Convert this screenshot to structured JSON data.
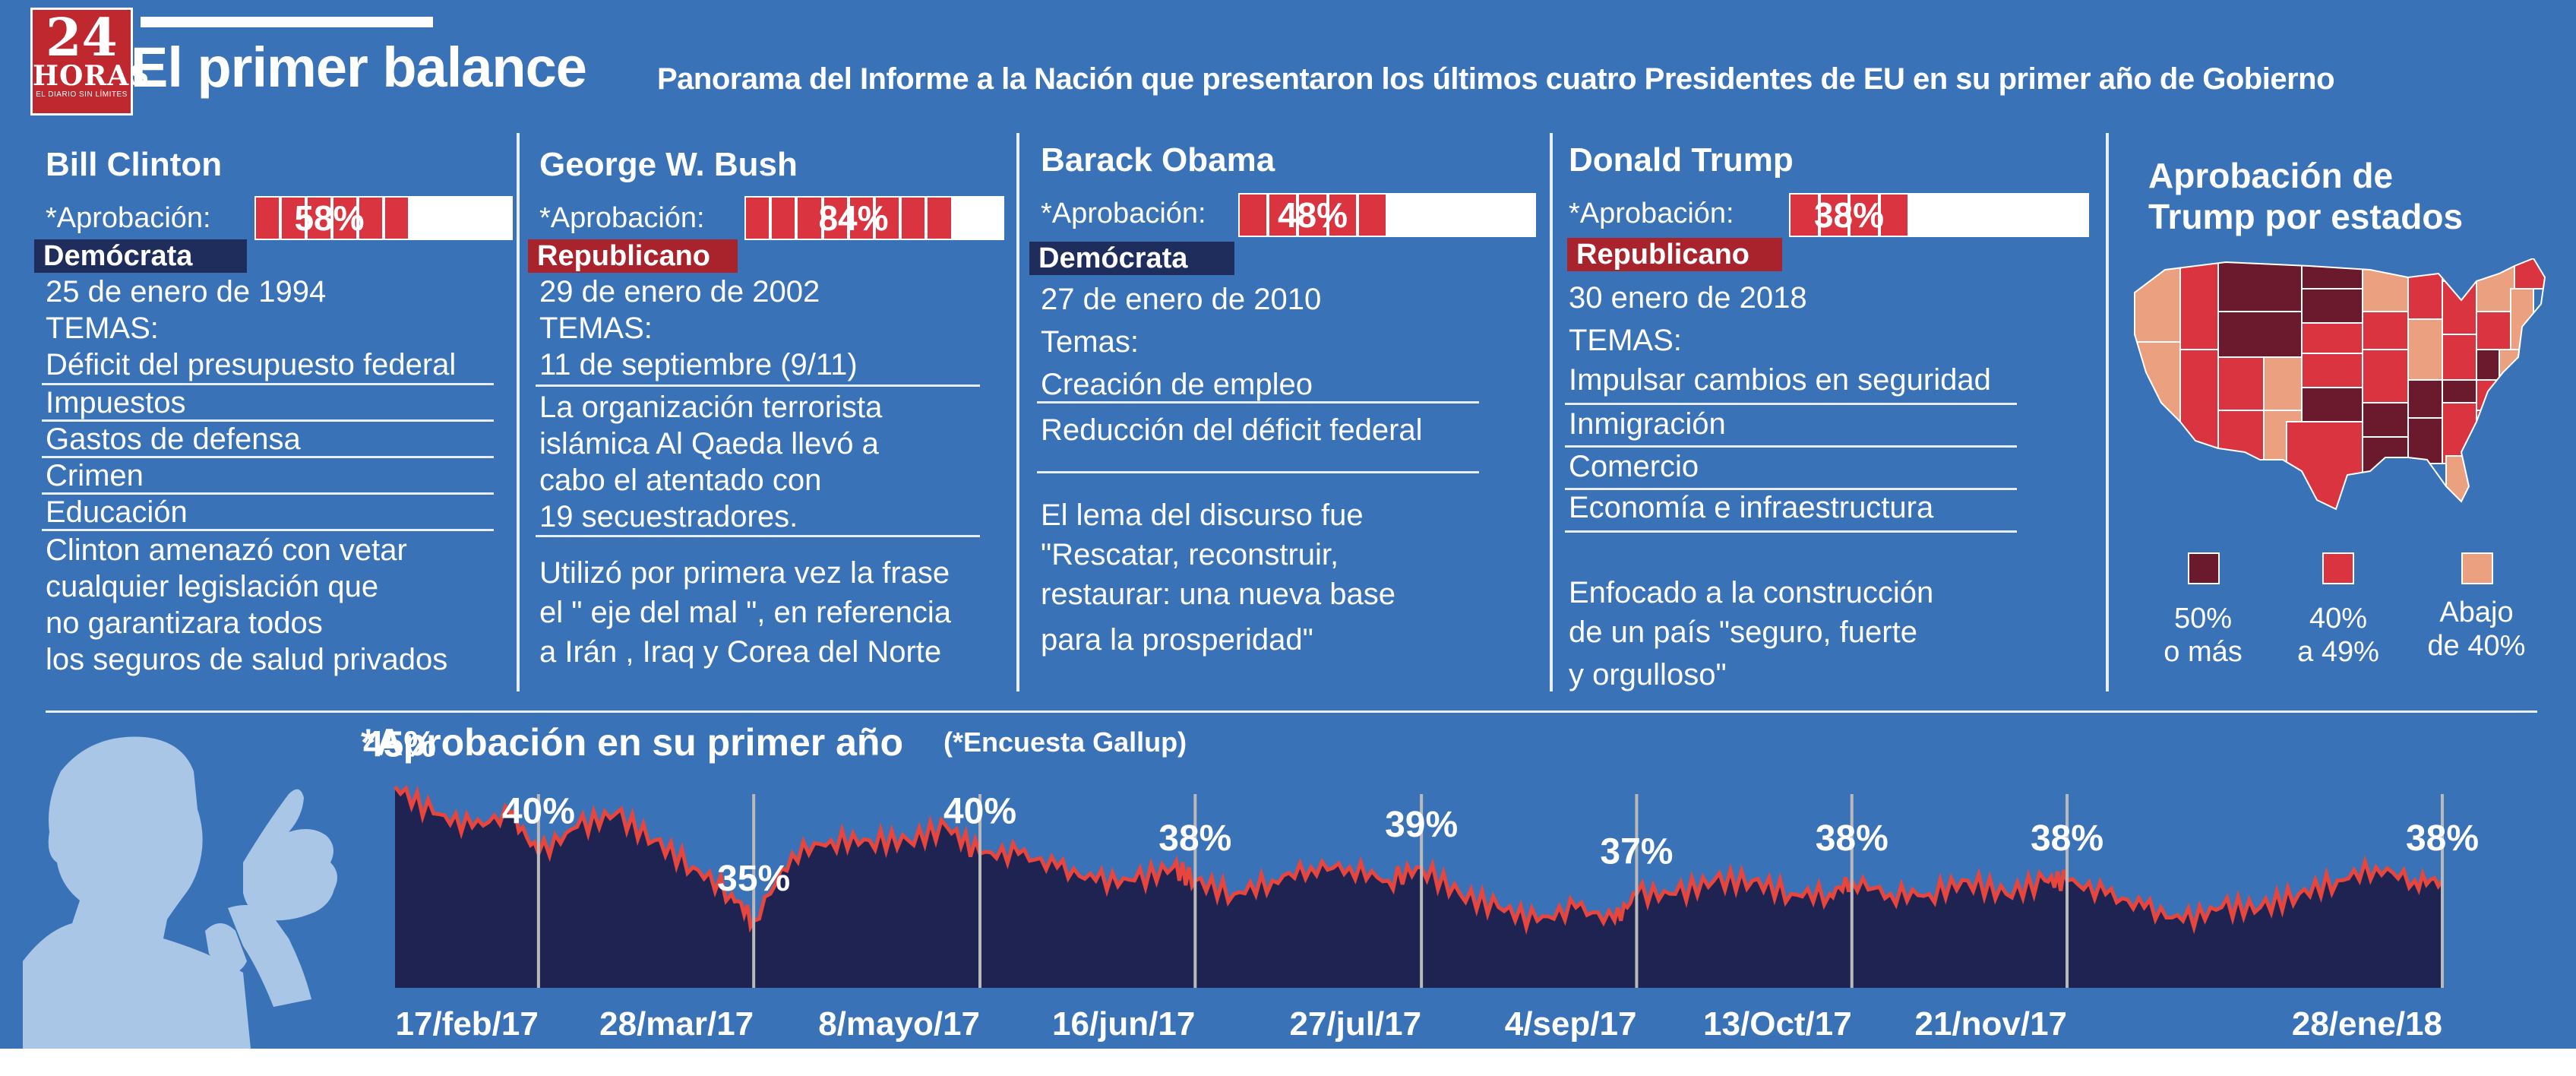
{
  "header": {
    "logo_number": "24",
    "logo_name": "HORAS",
    "logo_tagline": "EL DIARIO SIN LÍMITES",
    "title": "El primer balance",
    "subtitle": "Panorama del Informe a la Nación que presentaron los últimos cuatro Presidentes de EU en su primer año de Gobierno"
  },
  "approval_label": "*Aprobación:",
  "presidents": [
    {
      "name": "Bill Clinton",
      "approval": "58%",
      "approval_value": 58,
      "party": "Demócrata",
      "party_type": "dem",
      "date": "25 de enero de 1994",
      "topics_label": "TEMAS:",
      "topics": [
        "Déficit del presupuesto federal",
        "Impuestos",
        "Gastos de defensa",
        "Crimen",
        "Educación"
      ],
      "notes": [
        "Clinton amenazó con vetar",
        "cualquier legislación que",
        "no garantizara todos",
        "los seguros de salud privados"
      ]
    },
    {
      "name": "George W. Bush",
      "approval": "84%",
      "approval_value": 84,
      "party": "Republicano",
      "party_type": "rep",
      "date": "29 de enero de 2002",
      "topics_label": "TEMAS:",
      "topics": [
        "11 de septiembre (9/11)"
      ],
      "notes_a": [
        "La organización terrorista",
        "islámica Al Qaeda llevó a",
        "cabo el atentado con",
        "19 secuestradores."
      ],
      "notes_b": [
        "Utilizó por primera vez la frase",
        "el \" eje del mal \", en referencia",
        "a Irán , Iraq y Corea del Norte"
      ]
    },
    {
      "name": "Barack Obama",
      "approval": "48%",
      "approval_value": 48,
      "party": "Demócrata",
      "party_type": "dem",
      "date": "27 de enero de 2010",
      "topics_label": "Temas:",
      "topics": [
        "Creación de empleo",
        "Reducción del déficit federal"
      ],
      "notes": [
        "El lema del discurso fue",
        "\"Rescatar, reconstruir,",
        "restaurar: una nueva base",
        "para la prosperidad\""
      ]
    },
    {
      "name": "Donald Trump",
      "approval": "38%",
      "approval_value": 38,
      "party": "Republicano",
      "party_type": "rep",
      "date": "30 enero de 2018",
      "topics_label": "TEMAS:",
      "topics": [
        "Impulsar cambios en seguridad",
        "Inmigración",
        "Comercio",
        "Economía e infraestructura"
      ],
      "notes": [
        "Enfocado a la construcción",
        "de un país \"seguro, fuerte",
        "y orgulloso\""
      ]
    }
  ],
  "map": {
    "title_lines": [
      "Aprobación de",
      "Trump por estados"
    ],
    "legend": [
      {
        "color": "#6b1a2e",
        "lines": [
          "50%",
          "o más"
        ]
      },
      {
        "color": "#d9343f",
        "lines": [
          "40%",
          "a 49%"
        ]
      },
      {
        "color": "#eba07f",
        "lines": [
          "Abajo",
          "de 40%"
        ]
      }
    ]
  },
  "colors": {
    "background": "#3a72b8",
    "area_fill": "#1f2352",
    "line": "#e8453c",
    "gridline": "#b9b9b9"
  },
  "chart_data": {
    "type": "area",
    "title": "*Aprobación en su primer año",
    "note": "(*Encuesta Gallup)",
    "tick_labels": [
      "17/feb/17",
      "28/mar/17",
      "8/mayo/17",
      "16/jun/17",
      "27/jul/17",
      "4/sep/17",
      "13/Oct/17",
      "21/nov/17",
      "28/ene/18"
    ],
    "data_labels": [
      {
        "date": "2017-01-22",
        "label": "45%",
        "value": 45
      },
      {
        "date": "2017-02-17",
        "label": "40%",
        "value": 40
      },
      {
        "date": "2017-03-28",
        "label": "35%",
        "value": 35
      },
      {
        "date": "2017-05-08",
        "label": "40%",
        "value": 40
      },
      {
        "date": "2017-06-16",
        "label": "38%",
        "value": 38
      },
      {
        "date": "2017-07-27",
        "label": "39%",
        "value": 39
      },
      {
        "date": "2017-09-04",
        "label": "37%",
        "value": 37
      },
      {
        "date": "2017-10-13",
        "label": "38%",
        "value": 38
      },
      {
        "date": "2017-11-21",
        "label": "38%",
        "value": 38
      },
      {
        "date": "2018-01-28",
        "label": "38%",
        "value": 38
      }
    ],
    "series": [
      {
        "x": [
          "2017-01-22",
          "2017-01-29",
          "2017-02-05",
          "2017-02-12",
          "2017-02-17",
          "2017-02-24",
          "2017-03-03",
          "2017-03-10",
          "2017-03-17",
          "2017-03-24",
          "2017-03-28",
          "2017-04-04",
          "2017-04-11",
          "2017-04-18",
          "2017-04-25",
          "2017-05-02",
          "2017-05-08",
          "2017-05-15",
          "2017-05-22",
          "2017-05-29",
          "2017-06-05",
          "2017-06-12",
          "2017-06-16",
          "2017-06-23",
          "2017-06-30",
          "2017-07-07",
          "2017-07-14",
          "2017-07-21",
          "2017-07-27",
          "2017-08-03",
          "2017-08-10",
          "2017-08-17",
          "2017-08-24",
          "2017-08-31",
          "2017-09-04",
          "2017-09-11",
          "2017-09-18",
          "2017-09-25",
          "2017-10-02",
          "2017-10-09",
          "2017-10-13",
          "2017-10-20",
          "2017-10-27",
          "2017-11-03",
          "2017-11-10",
          "2017-11-17",
          "2017-11-21",
          "2017-11-28",
          "2017-12-05",
          "2017-12-12",
          "2017-12-19",
          "2017-12-26",
          "2018-01-02",
          "2018-01-09",
          "2018-01-16",
          "2018-01-23",
          "2018-01-28"
        ],
        "values": [
          45,
          43,
          42,
          43,
          40,
          42,
          43,
          41,
          39,
          37,
          35,
          40,
          41,
          41,
          41,
          42,
          40,
          40,
          39,
          38,
          38,
          39,
          38,
          37,
          38,
          39,
          39,
          38,
          39,
          37,
          36,
          35,
          36,
          35,
          37,
          37,
          38,
          38,
          37,
          37,
          38,
          37,
          37,
          38,
          37,
          38,
          38,
          37,
          36,
          35,
          36,
          36,
          37,
          38,
          39,
          38,
          38
        ]
      }
    ],
    "ylim": [
      30,
      47
    ]
  }
}
